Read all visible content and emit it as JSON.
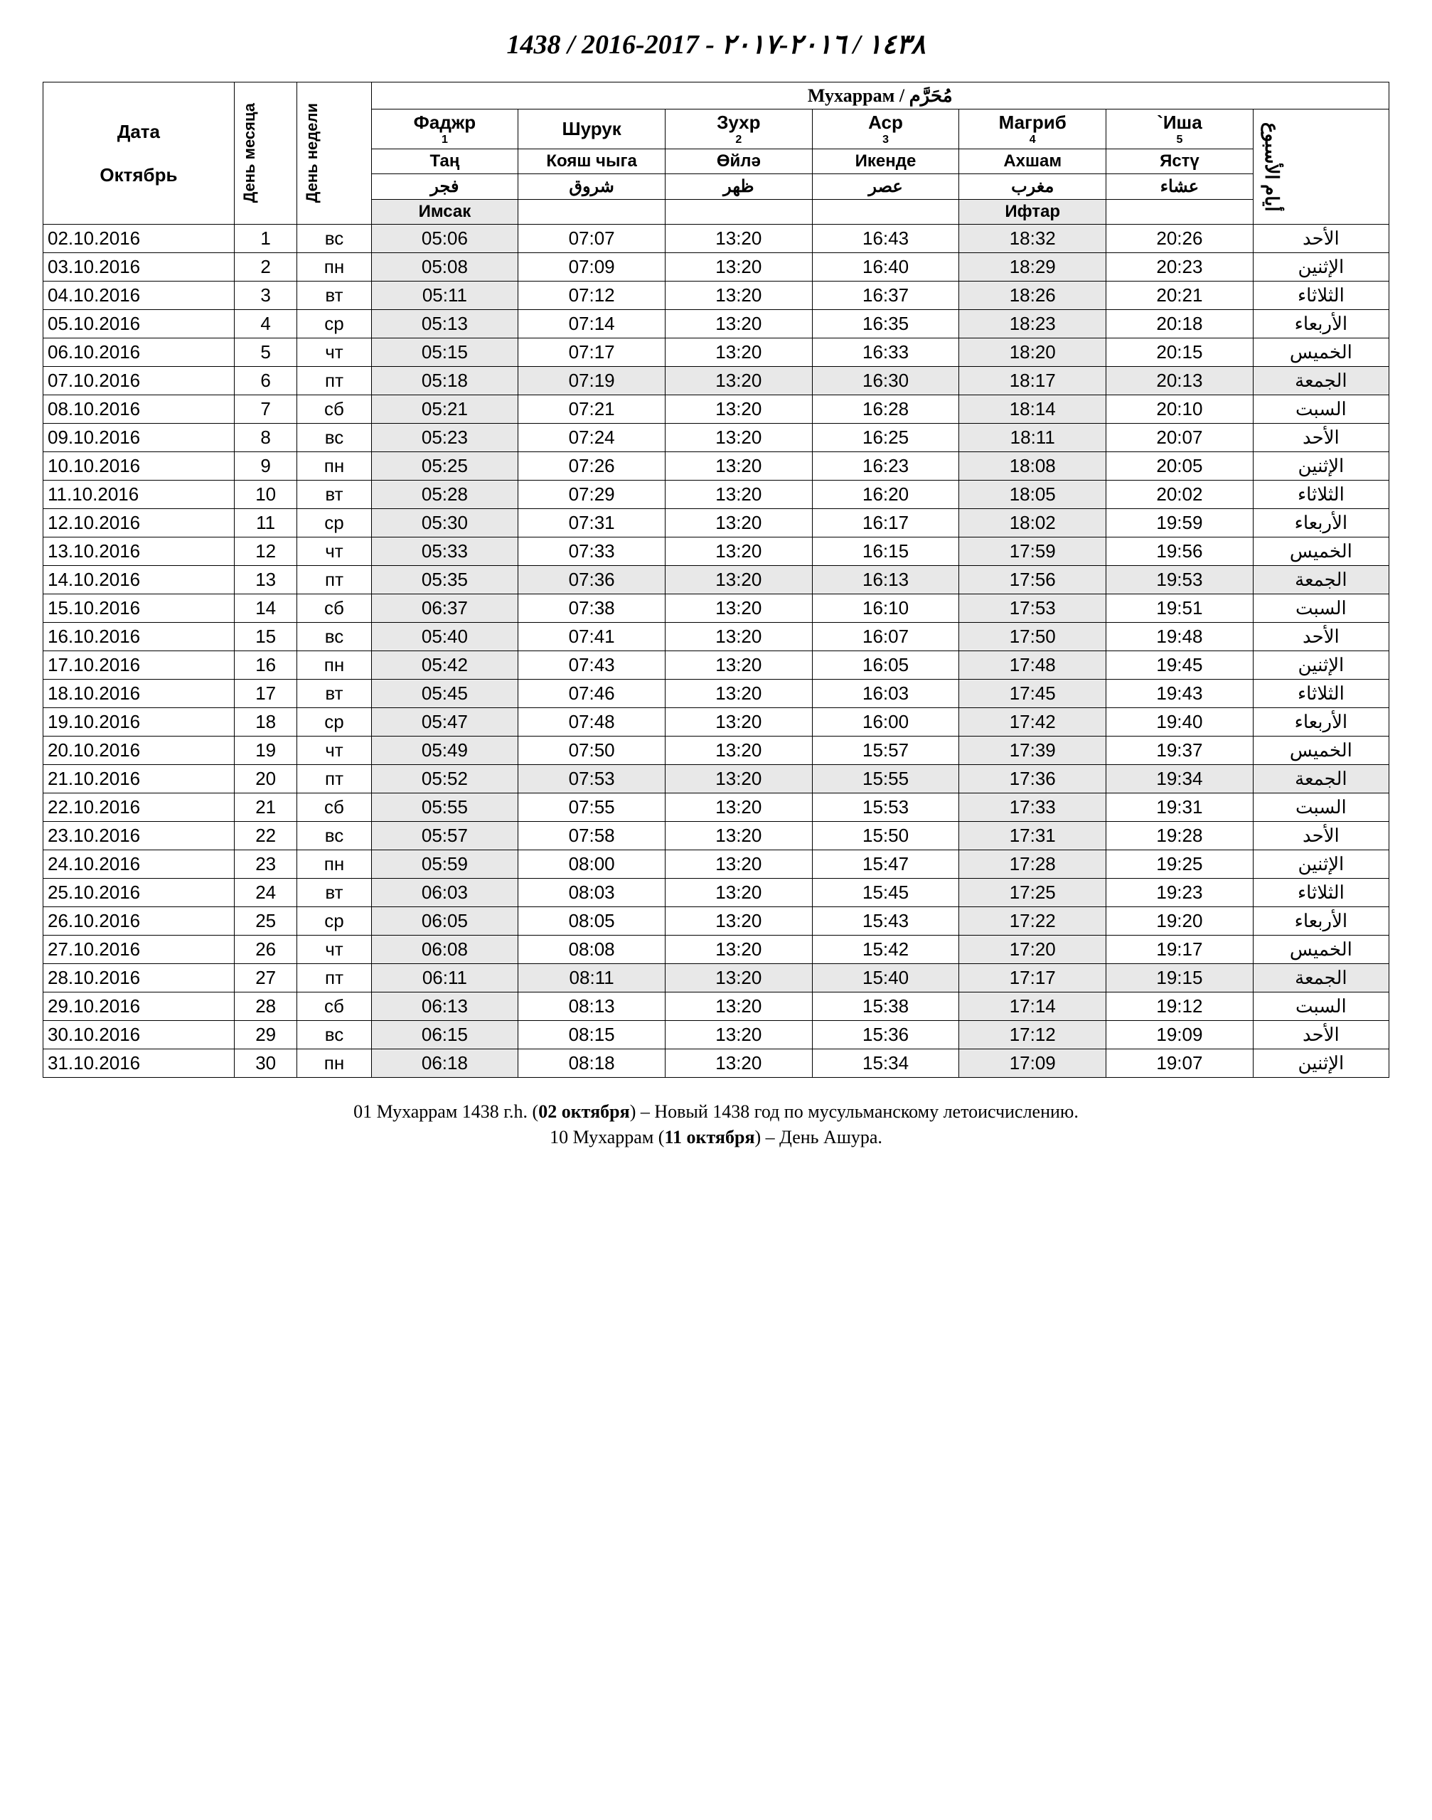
{
  "title": "1438 / 2016-2017 - ١٤٣٨ / ٢٠١٦-٢٠١٧",
  "month_header": "Мухаррам / مُحَرَّم",
  "columns": {
    "date_label": "Дата",
    "gregorian_month": "Октябрь",
    "day_of_month": "День месяца",
    "day_of_week": "День недели",
    "arabic_weekday_header": "أيام الأسبوع",
    "prayers": [
      {
        "ru": "Фаджр",
        "num": "1",
        "tt": "Таң",
        "ar": "فجر",
        "extra": "Имсак"
      },
      {
        "ru": "Шурук",
        "num": "",
        "tt": "Кояш чыга",
        "ar": "شروق",
        "extra": ""
      },
      {
        "ru": "Зухр",
        "num": "2",
        "tt": "Өйлә",
        "ar": "ظهر",
        "extra": ""
      },
      {
        "ru": "Аср",
        "num": "3",
        "tt": "Икенде",
        "ar": "عصر",
        "extra": ""
      },
      {
        "ru": "Магриб",
        "num": "4",
        "tt": "Ахшам",
        "ar": "مغرب",
        "extra": "Ифтар"
      },
      {
        "ru": "`Иша",
        "num": "5",
        "tt": "Ястү",
        "ar": "عشاء",
        "extra": ""
      }
    ]
  },
  "rows": [
    {
      "date": "02.10.2016",
      "dom": "1",
      "dow": "вс",
      "t": [
        "05:06",
        "07:07",
        "13:20",
        "16:43",
        "18:32",
        "20:26"
      ],
      "ar": "الأحد",
      "fri": false
    },
    {
      "date": "03.10.2016",
      "dom": "2",
      "dow": "пн",
      "t": [
        "05:08",
        "07:09",
        "13:20",
        "16:40",
        "18:29",
        "20:23"
      ],
      "ar": "الإثنين",
      "fri": false
    },
    {
      "date": "04.10.2016",
      "dom": "3",
      "dow": "вт",
      "t": [
        "05:11",
        "07:12",
        "13:20",
        "16:37",
        "18:26",
        "20:21"
      ],
      "ar": "الثلاثاء",
      "fri": false
    },
    {
      "date": "05.10.2016",
      "dom": "4",
      "dow": "ср",
      "t": [
        "05:13",
        "07:14",
        "13:20",
        "16:35",
        "18:23",
        "20:18"
      ],
      "ar": "الأربعاء",
      "fri": false
    },
    {
      "date": "06.10.2016",
      "dom": "5",
      "dow": "чт",
      "t": [
        "05:15",
        "07:17",
        "13:20",
        "16:33",
        "18:20",
        "20:15"
      ],
      "ar": "الخميس",
      "fri": false
    },
    {
      "date": "07.10.2016",
      "dom": "6",
      "dow": "пт",
      "t": [
        "05:18",
        "07:19",
        "13:20",
        "16:30",
        "18:17",
        "20:13"
      ],
      "ar": "الجمعة",
      "fri": true
    },
    {
      "date": "08.10.2016",
      "dom": "7",
      "dow": "сб",
      "t": [
        "05:21",
        "07:21",
        "13:20",
        "16:28",
        "18:14",
        "20:10"
      ],
      "ar": "السبت",
      "fri": false
    },
    {
      "date": "09.10.2016",
      "dom": "8",
      "dow": "вс",
      "t": [
        "05:23",
        "07:24",
        "13:20",
        "16:25",
        "18:11",
        "20:07"
      ],
      "ar": "الأحد",
      "fri": false
    },
    {
      "date": "10.10.2016",
      "dom": "9",
      "dow": "пн",
      "t": [
        "05:25",
        "07:26",
        "13:20",
        "16:23",
        "18:08",
        "20:05"
      ],
      "ar": "الإثنين",
      "fri": false
    },
    {
      "date": "11.10.2016",
      "dom": "10",
      "dow": "вт",
      "t": [
        "05:28",
        "07:29",
        "13:20",
        "16:20",
        "18:05",
        "20:02"
      ],
      "ar": "الثلاثاء",
      "fri": false
    },
    {
      "date": "12.10.2016",
      "dom": "11",
      "dow": "ср",
      "t": [
        "05:30",
        "07:31",
        "13:20",
        "16:17",
        "18:02",
        "19:59"
      ],
      "ar": "الأربعاء",
      "fri": false
    },
    {
      "date": "13.10.2016",
      "dom": "12",
      "dow": "чт",
      "t": [
        "05:33",
        "07:33",
        "13:20",
        "16:15",
        "17:59",
        "19:56"
      ],
      "ar": "الخميس",
      "fri": false
    },
    {
      "date": "14.10.2016",
      "dom": "13",
      "dow": "пт",
      "t": [
        "05:35",
        "07:36",
        "13:20",
        "16:13",
        "17:56",
        "19:53"
      ],
      "ar": "الجمعة",
      "fri": true
    },
    {
      "date": "15.10.2016",
      "dom": "14",
      "dow": "сб",
      "t": [
        "06:37",
        "07:38",
        "13:20",
        "16:10",
        "17:53",
        "19:51"
      ],
      "ar": "السبت",
      "fri": false
    },
    {
      "date": "16.10.2016",
      "dom": "15",
      "dow": "вс",
      "t": [
        "05:40",
        "07:41",
        "13:20",
        "16:07",
        "17:50",
        "19:48"
      ],
      "ar": "الأحد",
      "fri": false
    },
    {
      "date": "17.10.2016",
      "dom": "16",
      "dow": "пн",
      "t": [
        "05:42",
        "07:43",
        "13:20",
        "16:05",
        "17:48",
        "19:45"
      ],
      "ar": "الإثنين",
      "fri": false
    },
    {
      "date": "18.10.2016",
      "dom": "17",
      "dow": "вт",
      "t": [
        "05:45",
        "07:46",
        "13:20",
        "16:03",
        "17:45",
        "19:43"
      ],
      "ar": "الثلاثاء",
      "fri": false
    },
    {
      "date": "19.10.2016",
      "dom": "18",
      "dow": "ср",
      "t": [
        "05:47",
        "07:48",
        "13:20",
        "16:00",
        "17:42",
        "19:40"
      ],
      "ar": "الأربعاء",
      "fri": false
    },
    {
      "date": "20.10.2016",
      "dom": "19",
      "dow": "чт",
      "t": [
        "05:49",
        "07:50",
        "13:20",
        "15:57",
        "17:39",
        "19:37"
      ],
      "ar": "الخميس",
      "fri": false
    },
    {
      "date": "21.10.2016",
      "dom": "20",
      "dow": "пт",
      "t": [
        "05:52",
        "07:53",
        "13:20",
        "15:55",
        "17:36",
        "19:34"
      ],
      "ar": "الجمعة",
      "fri": true
    },
    {
      "date": "22.10.2016",
      "dom": "21",
      "dow": "сб",
      "t": [
        "05:55",
        "07:55",
        "13:20",
        "15:53",
        "17:33",
        "19:31"
      ],
      "ar": "السبت",
      "fri": false
    },
    {
      "date": "23.10.2016",
      "dom": "22",
      "dow": "вс",
      "t": [
        "05:57",
        "07:58",
        "13:20",
        "15:50",
        "17:31",
        "19:28"
      ],
      "ar": "الأحد",
      "fri": false
    },
    {
      "date": "24.10.2016",
      "dom": "23",
      "dow": "пн",
      "t": [
        "05:59",
        "08:00",
        "13:20",
        "15:47",
        "17:28",
        "19:25"
      ],
      "ar": "الإثنين",
      "fri": false
    },
    {
      "date": "25.10.2016",
      "dom": "24",
      "dow": "вт",
      "t": [
        "06:03",
        "08:03",
        "13:20",
        "15:45",
        "17:25",
        "19:23"
      ],
      "ar": "الثلاثاء",
      "fri": false
    },
    {
      "date": "26.10.2016",
      "dom": "25",
      "dow": "ср",
      "t": [
        "06:05",
        "08:05",
        "13:20",
        "15:43",
        "17:22",
        "19:20"
      ],
      "ar": "الأربعاء",
      "fri": false
    },
    {
      "date": "27.10.2016",
      "dom": "26",
      "dow": "чт",
      "t": [
        "06:08",
        "08:08",
        "13:20",
        "15:42",
        "17:20",
        "19:17"
      ],
      "ar": "الخميس",
      "fri": false
    },
    {
      "date": "28.10.2016",
      "dom": "27",
      "dow": "пт",
      "t": [
        "06:11",
        "08:11",
        "13:20",
        "15:40",
        "17:17",
        "19:15"
      ],
      "ar": "الجمعة",
      "fri": true
    },
    {
      "date": "29.10.2016",
      "dom": "28",
      "dow": "сб",
      "t": [
        "06:13",
        "08:13",
        "13:20",
        "15:38",
        "17:14",
        "19:12"
      ],
      "ar": "السبت",
      "fri": false
    },
    {
      "date": "30.10.2016",
      "dom": "29",
      "dow": "вс",
      "t": [
        "06:15",
        "08:15",
        "13:20",
        "15:36",
        "17:12",
        "19:09"
      ],
      "ar": "الأحد",
      "fri": false
    },
    {
      "date": "31.10.2016",
      "dom": "30",
      "dow": "пн",
      "t": [
        "06:18",
        "08:18",
        "13:20",
        "15:34",
        "17:09",
        "19:07"
      ],
      "ar": "الإثنين",
      "fri": false
    }
  ],
  "footnotes": [
    {
      "pre": "01 Мухаррам 1438 г.h. (",
      "b": "02 октября",
      "post": ") – Новый 1438 год по мусульманскому летоисчислению."
    },
    {
      "pre": "10 Мухаррам (",
      "b": "11 октября",
      "post": ") – День Ашура."
    }
  ],
  "style": {
    "colors": {
      "bg": "#ffffff",
      "text": "#000000",
      "border": "#000000",
      "shade": "#e8e8e8"
    },
    "shaded_time_cols": [
      0,
      4
    ],
    "fonts": {
      "title_size": 38,
      "header_size": 26,
      "cell_size": 26,
      "footnote_size": 26
    }
  }
}
